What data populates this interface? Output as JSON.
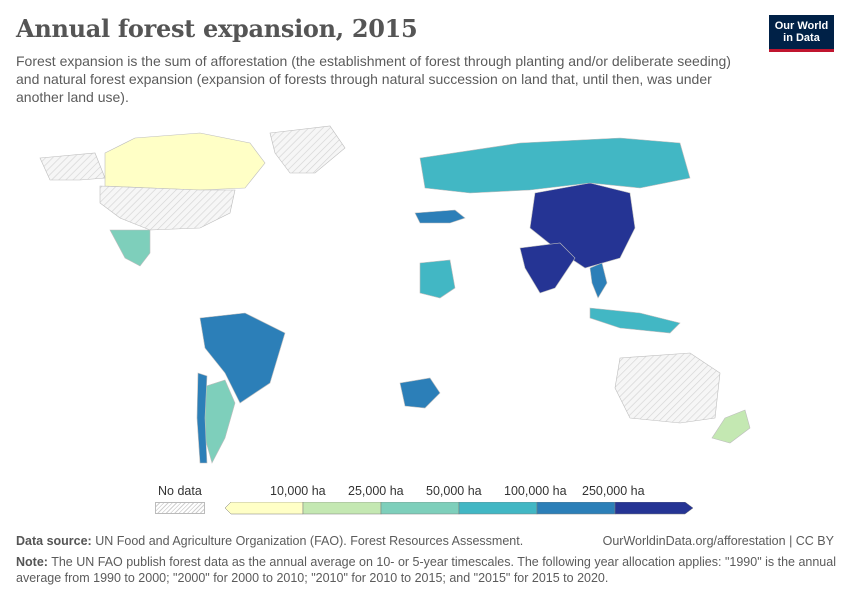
{
  "title": "Annual forest expansion, 2015",
  "subtitle": "Forest expansion is the sum of afforestation (the establishment of forest through planting and/or deliberate seeding) and natural forest expansion (expansion of forests through natural succession on land that, until then, was under another land use).",
  "logo": {
    "line1": "Our World",
    "line2": "in Data"
  },
  "legend": {
    "no_data_label": "No data",
    "bins": [
      "10,000 ha",
      "25,000 ha",
      "50,000 ha",
      "100,000 ha",
      "250,000 ha"
    ],
    "colors": [
      "#ffffc6",
      "#c4e8b2",
      "#7ecfbb",
      "#42b7c4",
      "#2c7fb8",
      "#253494"
    ]
  },
  "source": {
    "label": "Data source:",
    "text": "UN Food and Agriculture Organization (FAO). Forest Resources Assessment."
  },
  "url": "OurWorldinData.org/afforestation | CC BY",
  "note": {
    "label": "Note:",
    "text": "The UN FAO publish forest data as the annual average on 10- or 5-year timescales. The following year allocation applies: \"1990\" is the annual average from 1990 to 2000; \"2000\" for 2000 to 2010; \"2010\" for 2010 to 2015; and \"2015\" for 2015 to 2020."
  },
  "map_regions": [
    {
      "name": "Canada",
      "bin": 0
    },
    {
      "name": "United States",
      "bin": -1
    },
    {
      "name": "Alaska",
      "bin": -1
    },
    {
      "name": "Greenland",
      "bin": -1
    },
    {
      "name": "Mexico",
      "bin": 2
    },
    {
      "name": "Brazil",
      "bin": 4
    },
    {
      "name": "Argentina",
      "bin": 2
    },
    {
      "name": "Chile",
      "bin": 4
    },
    {
      "name": "China",
      "bin": 5
    },
    {
      "name": "India",
      "bin": 5
    },
    {
      "name": "Russia",
      "bin": 3
    },
    {
      "name": "Turkey",
      "bin": 4
    },
    {
      "name": "Sudan",
      "bin": 3
    },
    {
      "name": "South Africa",
      "bin": 4
    },
    {
      "name": "Indonesia",
      "bin": 3
    },
    {
      "name": "Vietnam",
      "bin": 4
    },
    {
      "name": "Australia",
      "bin": -1
    },
    {
      "name": "New Zealand",
      "bin": 1
    }
  ]
}
